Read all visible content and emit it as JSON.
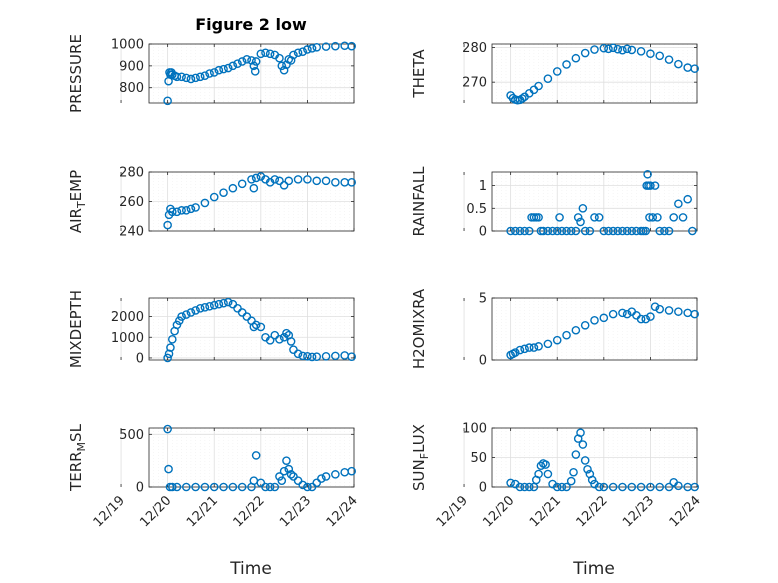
{
  "figure": {
    "title": "Figure 2 low",
    "xlabel": "Time",
    "x_ticks": [
      "12/19",
      "12/20",
      "12/21",
      "12/22",
      "12/23",
      "12/24"
    ],
    "marker_color": "#0072bd",
    "axis_color": "#262626",
    "grid_color": "#dfdfdf"
  },
  "chart_data": [
    {
      "type": "scatter",
      "id": "pressure",
      "ylabel": "PRESSURE",
      "ylim": [
        730,
        1000
      ],
      "yticks": [
        800,
        900,
        1000
      ],
      "grid": true,
      "x": [
        0.0,
        0.02,
        0.04,
        0.06,
        0.08,
        0.1,
        0.15,
        0.2,
        0.3,
        0.4,
        0.5,
        0.6,
        0.7,
        0.8,
        0.9,
        1.0,
        1.1,
        1.2,
        1.3,
        1.4,
        1.5,
        1.6,
        1.7,
        1.8,
        1.85,
        1.88,
        1.9,
        2.0,
        2.1,
        2.2,
        2.3,
        2.4,
        2.45,
        2.5,
        2.55,
        2.6,
        2.65,
        2.7,
        2.8,
        2.9,
        3.0,
        3.1,
        3.2,
        3.4,
        3.6,
        3.8,
        3.95
      ],
      "y": [
        740,
        830,
        870,
        860,
        870,
        860,
        855,
        850,
        850,
        845,
        840,
        845,
        850,
        855,
        865,
        870,
        880,
        885,
        890,
        900,
        910,
        920,
        930,
        925,
        900,
        875,
        920,
        955,
        960,
        955,
        950,
        935,
        900,
        880,
        905,
        930,
        925,
        950,
        960,
        965,
        975,
        980,
        985,
        988,
        990,
        992,
        990
      ]
    },
    {
      "type": "scatter",
      "id": "theta",
      "ylabel": "THETA",
      "ylim": [
        264,
        281
      ],
      "yticks": [
        270,
        280
      ],
      "grid": true,
      "x": [
        0.0,
        0.05,
        0.1,
        0.15,
        0.2,
        0.25,
        0.3,
        0.4,
        0.5,
        0.6,
        0.8,
        1.0,
        1.2,
        1.4,
        1.6,
        1.8,
        2.0,
        2.1,
        2.2,
        2.3,
        2.4,
        2.5,
        2.6,
        2.8,
        3.0,
        3.2,
        3.4,
        3.6,
        3.8,
        3.95
      ],
      "y": [
        266.2,
        265.4,
        265.0,
        264.8,
        264.9,
        265.3,
        265.8,
        266.8,
        267.8,
        268.9,
        271.0,
        273.1,
        275.1,
        276.9,
        278.4,
        279.4,
        279.8,
        279.6,
        279.9,
        279.5,
        279.2,
        279.6,
        279.3,
        278.9,
        278.2,
        277.6,
        276.5,
        275.2,
        274.2,
        273.9
      ]
    },
    {
      "type": "scatter",
      "id": "air_temp",
      "ylabel": "AIR_TEMP",
      "ylim": [
        240,
        280
      ],
      "yticks": [
        240,
        260,
        280
      ],
      "grid": true,
      "x": [
        0.0,
        0.03,
        0.06,
        0.1,
        0.2,
        0.3,
        0.4,
        0.5,
        0.6,
        0.8,
        1.0,
        1.2,
        1.4,
        1.6,
        1.8,
        1.85,
        1.9,
        2.0,
        2.1,
        2.2,
        2.3,
        2.4,
        2.5,
        2.6,
        2.8,
        3.0,
        3.2,
        3.4,
        3.6,
        3.8,
        3.95
      ],
      "y": [
        244,
        251,
        255,
        253,
        253,
        254,
        254,
        255,
        256,
        259,
        263,
        266,
        269,
        272,
        275,
        269,
        276,
        277,
        275,
        273,
        275,
        274,
        271,
        274,
        275,
        275,
        274,
        274,
        273,
        273,
        273
      ]
    },
    {
      "type": "scatter",
      "id": "rainfall",
      "ylabel": "RAINFALL",
      "ylim": [
        0,
        1.3
      ],
      "yticks": [
        0,
        0.5,
        1
      ],
      "grid": true,
      "x": [
        0.0,
        0.1,
        0.2,
        0.3,
        0.4,
        0.45,
        0.5,
        0.55,
        0.6,
        0.65,
        0.7,
        0.8,
        0.9,
        1.0,
        1.05,
        1.1,
        1.2,
        1.3,
        1.4,
        1.45,
        1.5,
        1.55,
        1.6,
        1.7,
        1.8,
        1.9,
        2.0,
        2.1,
        2.2,
        2.3,
        2.4,
        2.5,
        2.6,
        2.7,
        2.8,
        2.85,
        2.9,
        2.92,
        2.94,
        2.96,
        2.98,
        3.0,
        3.05,
        3.1,
        3.15,
        3.2,
        3.3,
        3.4,
        3.5,
        3.6,
        3.7,
        3.8,
        3.9
      ],
      "y": [
        0,
        0,
        0,
        0,
        0,
        0.3,
        0.3,
        0.3,
        0.3,
        0,
        0,
        0,
        0,
        0,
        0.3,
        0,
        0,
        0,
        0,
        0.3,
        0.2,
        0.5,
        0,
        0,
        0.3,
        0.3,
        0,
        0,
        0,
        0,
        0,
        0,
        0,
        0,
        0,
        0,
        0,
        1.0,
        1.25,
        1.0,
        0.3,
        1.0,
        0.3,
        1.0,
        0.3,
        0,
        0,
        0,
        0.3,
        0.6,
        0.3,
        0.7,
        0
      ]
    },
    {
      "type": "scatter",
      "id": "mixdepth",
      "ylabel": "MIXDEPTH",
      "ylim": [
        -100,
        2900
      ],
      "yticks": [
        0,
        1000,
        2000
      ],
      "grid": true,
      "x": [
        0.0,
        0.03,
        0.06,
        0.1,
        0.15,
        0.2,
        0.25,
        0.3,
        0.4,
        0.5,
        0.6,
        0.7,
        0.8,
        0.9,
        1.0,
        1.1,
        1.2,
        1.3,
        1.4,
        1.5,
        1.6,
        1.7,
        1.8,
        1.85,
        1.9,
        2.0,
        2.1,
        2.2,
        2.3,
        2.4,
        2.5,
        2.55,
        2.6,
        2.65,
        2.7,
        2.8,
        2.9,
        3.0,
        3.1,
        3.2,
        3.4,
        3.6,
        3.8,
        3.95
      ],
      "y": [
        0,
        200,
        500,
        900,
        1300,
        1600,
        1800,
        2000,
        2100,
        2200,
        2300,
        2400,
        2450,
        2500,
        2550,
        2600,
        2650,
        2700,
        2600,
        2400,
        2200,
        2000,
        1800,
        1500,
        1600,
        1500,
        1000,
        850,
        1100,
        900,
        1000,
        1200,
        1100,
        800,
        400,
        200,
        100,
        80,
        50,
        60,
        80,
        100,
        120,
        60
      ]
    },
    {
      "type": "scatter",
      "id": "h2omixra",
      "ylabel": "H2OMIXRA",
      "ylim": [
        0,
        5
      ],
      "yticks": [
        0,
        5
      ],
      "grid": true,
      "x": [
        0.0,
        0.05,
        0.1,
        0.2,
        0.3,
        0.4,
        0.5,
        0.6,
        0.8,
        1.0,
        1.2,
        1.4,
        1.6,
        1.8,
        2.0,
        2.2,
        2.4,
        2.5,
        2.6,
        2.7,
        2.8,
        2.9,
        3.0,
        3.1,
        3.2,
        3.4,
        3.6,
        3.8,
        3.95
      ],
      "y": [
        0.4,
        0.5,
        0.6,
        0.8,
        0.9,
        1.0,
        1.0,
        1.1,
        1.3,
        1.6,
        2.0,
        2.4,
        2.8,
        3.2,
        3.4,
        3.7,
        3.8,
        3.7,
        3.9,
        3.6,
        3.3,
        3.3,
        3.5,
        4.3,
        4.1,
        4.0,
        3.9,
        3.8,
        3.7
      ]
    },
    {
      "type": "scatter",
      "id": "terr_msl",
      "ylabel": "TERR_MSL",
      "ylim": [
        0,
        560
      ],
      "yticks": [
        0,
        500
      ],
      "grid": true,
      "x": [
        0.0,
        0.02,
        0.05,
        0.1,
        0.2,
        0.4,
        0.6,
        0.8,
        1.0,
        1.2,
        1.4,
        1.6,
        1.8,
        1.85,
        1.9,
        2.0,
        2.1,
        2.2,
        2.3,
        2.4,
        2.45,
        2.5,
        2.55,
        2.6,
        2.65,
        2.7,
        2.8,
        2.9,
        3.0,
        3.1,
        3.2,
        3.3,
        3.4,
        3.6,
        3.8,
        3.95
      ],
      "y": [
        550,
        170,
        0,
        0,
        0,
        0,
        0,
        0,
        0,
        0,
        0,
        0,
        0,
        60,
        300,
        40,
        0,
        0,
        0,
        100,
        60,
        150,
        250,
        170,
        120,
        100,
        60,
        20,
        0,
        0,
        40,
        80,
        100,
        120,
        140,
        150
      ]
    },
    {
      "type": "scatter",
      "id": "sun_flux",
      "ylabel": "SUN_FLUX",
      "ylim": [
        0,
        100
      ],
      "yticks": [
        0,
        50,
        100
      ],
      "grid": true,
      "x": [
        0.0,
        0.1,
        0.2,
        0.3,
        0.4,
        0.5,
        0.55,
        0.6,
        0.65,
        0.7,
        0.75,
        0.8,
        0.9,
        1.0,
        1.1,
        1.2,
        1.3,
        1.35,
        1.4,
        1.45,
        1.5,
        1.55,
        1.6,
        1.65,
        1.7,
        1.75,
        1.8,
        1.9,
        2.0,
        2.2,
        2.4,
        2.6,
        2.8,
        3.0,
        3.2,
        3.4,
        3.5,
        3.6,
        3.8,
        3.95
      ],
      "y": [
        7,
        5,
        0,
        0,
        0,
        0,
        12,
        22,
        36,
        40,
        38,
        22,
        5,
        0,
        0,
        0,
        10,
        25,
        55,
        82,
        92,
        72,
        45,
        30,
        22,
        12,
        5,
        0,
        0,
        0,
        0,
        0,
        0,
        0,
        0,
        0,
        8,
        2,
        0,
        0
      ]
    }
  ]
}
